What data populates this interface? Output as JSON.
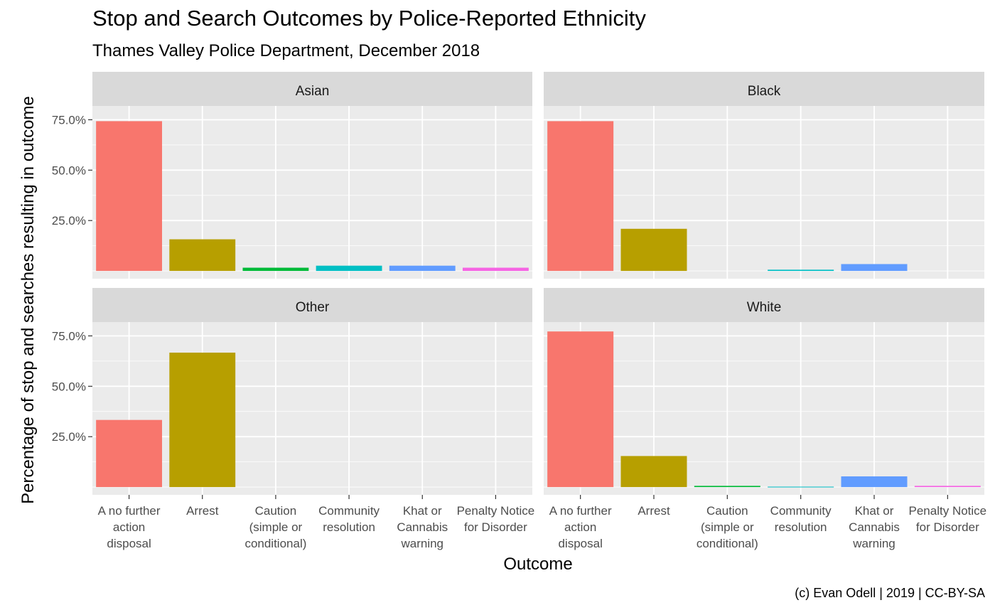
{
  "chart_data": {
    "type": "bar",
    "title": "Stop and Search Outcomes by Police-Reported Ethnicity",
    "subtitle": "Thames Valley Police Department, December 2018",
    "xlabel": "Outcome",
    "ylabel": "Percentage of stop and searches resulting in outcome",
    "caption": "(c) Evan Odell | 2019 | CC-BY-SA",
    "categories": [
      "A no further action disposal",
      "Arrest",
      "Caution (simple or conditional)",
      "Community resolution",
      "Khat or Cannabis warning",
      "Penalty Notice for Disorder"
    ],
    "category_labels": [
      [
        "A no further",
        "action",
        "disposal"
      ],
      [
        "Arrest"
      ],
      [
        "Caution",
        "(simple or",
        "conditional)"
      ],
      [
        "Community",
        "resolution"
      ],
      [
        "Khat or",
        "Cannabis",
        "warning"
      ],
      [
        "Penalty Notice",
        "for Disorder"
      ]
    ],
    "colors": [
      "#F8766D",
      "#B79F00",
      "#00BA38",
      "#00BFC4",
      "#619CFF",
      "#F564E3"
    ],
    "y_ticks": [
      25,
      50,
      75
    ],
    "y_tick_labels": [
      "25.0%",
      "50.0%",
      "75.0%"
    ],
    "ylim": [
      0,
      78
    ],
    "grid": true,
    "panels": [
      {
        "name": "Asian",
        "values": [
          74.3,
          15.7,
          1.6,
          2.6,
          2.6,
          1.6
        ]
      },
      {
        "name": "Black",
        "values": [
          74.3,
          20.9,
          0,
          0.6,
          3.4,
          0
        ]
      },
      {
        "name": "Other",
        "values": [
          33.3,
          66.7,
          0,
          0,
          0,
          0
        ]
      },
      {
        "name": "White",
        "values": [
          77.2,
          15.4,
          0.6,
          0.2,
          5.3,
          0.6
        ]
      }
    ]
  }
}
